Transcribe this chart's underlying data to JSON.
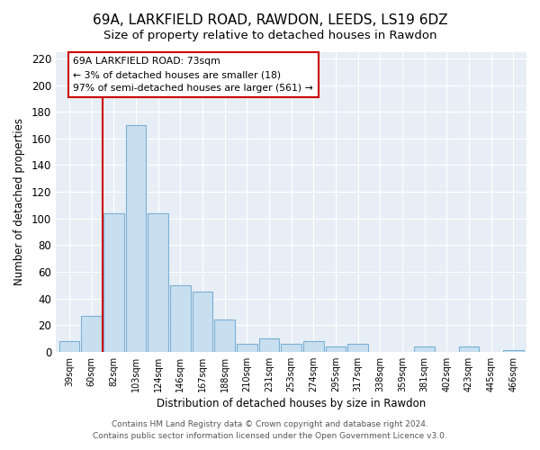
{
  "title": "69A, LARKFIELD ROAD, RAWDON, LEEDS, LS19 6DZ",
  "subtitle": "Size of property relative to detached houses in Rawdon",
  "xlabel": "Distribution of detached houses by size in Rawdon",
  "ylabel": "Number of detached properties",
  "bar_color": "#c8dff0",
  "bar_edge_color": "#7ab0d4",
  "categories": [
    "39sqm",
    "60sqm",
    "82sqm",
    "103sqm",
    "124sqm",
    "146sqm",
    "167sqm",
    "188sqm",
    "210sqm",
    "231sqm",
    "253sqm",
    "274sqm",
    "295sqm",
    "317sqm",
    "338sqm",
    "359sqm",
    "381sqm",
    "402sqm",
    "423sqm",
    "445sqm",
    "466sqm"
  ],
  "values": [
    8,
    27,
    104,
    170,
    104,
    50,
    45,
    24,
    6,
    10,
    6,
    8,
    4,
    6,
    0,
    0,
    4,
    0,
    4,
    0,
    1
  ],
  "ylim": [
    0,
    225
  ],
  "yticks": [
    0,
    20,
    40,
    60,
    80,
    100,
    120,
    140,
    160,
    180,
    200,
    220
  ],
  "vline_x": 1.5,
  "vline_color": "#cc0000",
  "annotation_title": "69A LARKFIELD ROAD: 73sqm",
  "annotation_line1": "← 3% of detached houses are smaller (18)",
  "annotation_line2": "97% of semi-detached houses are larger (561) →",
  "footer_line1": "Contains HM Land Registry data © Crown copyright and database right 2024.",
  "footer_line2": "Contains public sector information licensed under the Open Government Licence v3.0.",
  "background_color": "#ffffff",
  "plot_bg_color": "#e8eef5",
  "grid_color": "#ffffff",
  "title_fontsize": 11,
  "subtitle_fontsize": 9.5
}
